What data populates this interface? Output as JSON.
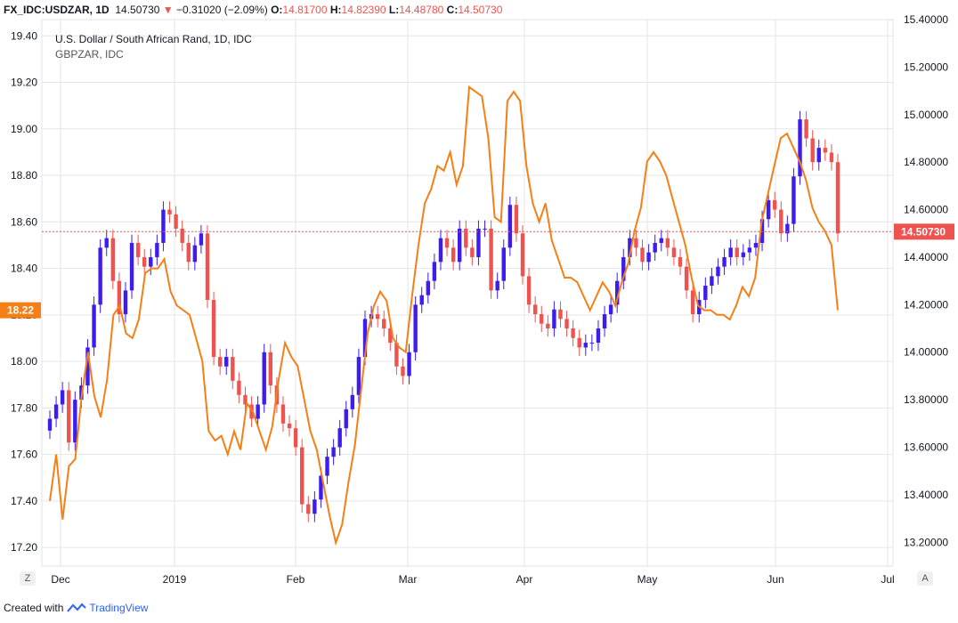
{
  "header": {
    "symbol": "FX_IDC:USDZAR, 1D",
    "last": "14.50730",
    "change_arrow": "▼",
    "change": "−0.31020 (−2.09%)",
    "o_label": "O:",
    "o": "14.81700",
    "h_label": "H:",
    "h": "14.82390",
    "l_label": "L:",
    "l": "14.48780",
    "c_label": "C:",
    "c": "14.50730"
  },
  "legend": {
    "line1": "U.S. Dollar / South African Rand, 1D, IDC",
    "line2": "GBPZAR, IDC"
  },
  "footer": {
    "created_with": "Created with",
    "brand": "TradingView"
  },
  "axis_buttons": {
    "left": "Z",
    "right": "A"
  },
  "colors": {
    "up": "#3d1cf0",
    "down": "#ef5350",
    "gbp_line": "#f57f17",
    "price_line": "#ef5350",
    "grid": "#e6e6e6"
  },
  "chart_data": {
    "type": "line",
    "title": "U.S. Dollar / South African Rand, 1D, IDC",
    "x_ticks": [
      "Dec",
      "2019",
      "Feb",
      "Mar",
      "Apr",
      "May",
      "Jun",
      "Jul"
    ],
    "left_axis": {
      "series": "GBPZAR",
      "ticks": [
        "19.40",
        "19.20",
        "19.00",
        "18.80",
        "18.60",
        "18.40",
        "18.20",
        "18.00",
        "17.80",
        "17.60",
        "17.40",
        "17.20"
      ],
      "range": [
        17.12,
        19.47
      ],
      "last_label": "18.22"
    },
    "right_axis": {
      "series": "USDZAR",
      "ticks": [
        "15.40000",
        "15.20000",
        "15.00000",
        "14.80000",
        "14.60000",
        "14.40000",
        "14.20000",
        "14.00000",
        "13.80000",
        "13.60000",
        "13.40000",
        "13.20000"
      ],
      "range": [
        13.1,
        15.4
      ],
      "last_label": "14.50730"
    },
    "usdzar_candles_close": [
      13.72,
      13.78,
      13.84,
      13.62,
      13.8,
      13.86,
      14.02,
      14.2,
      14.44,
      14.48,
      14.3,
      14.16,
      14.26,
      14.46,
      14.4,
      14.36,
      14.4,
      14.46,
      14.6,
      14.58,
      14.52,
      14.46,
      14.38,
      14.45,
      14.5,
      14.22,
      13.98,
      13.94,
      13.98,
      13.88,
      13.82,
      13.78,
      13.72,
      13.78,
      14.0,
      13.86,
      13.78,
      13.7,
      13.68,
      13.6,
      13.36,
      13.32,
      13.38,
      13.48,
      13.56,
      13.6,
      13.68,
      13.76,
      13.82,
      13.98,
      14.14,
      14.16,
      14.14,
      14.1,
      14.04,
      13.94,
      13.9,
      14.0,
      14.2,
      14.24,
      14.3,
      14.38,
      14.48,
      14.44,
      14.38,
      14.52,
      14.44,
      14.4,
      14.52,
      14.52,
      14.26,
      14.3,
      14.44,
      14.62,
      14.5,
      14.32,
      14.2,
      14.16,
      14.12,
      14.1,
      14.18,
      14.14,
      14.1,
      14.06,
      14.02,
      14.04,
      14.04,
      14.1,
      14.16,
      14.2,
      14.3,
      14.4,
      14.48,
      14.44,
      14.38,
      14.42,
      14.46,
      14.48,
      14.44,
      14.4,
      14.36,
      14.26,
      14.16,
      14.22,
      14.28,
      14.32,
      14.36,
      14.4,
      14.44,
      14.4,
      14.42,
      14.44,
      14.46,
      14.56,
      14.64,
      14.6,
      14.5,
      14.54,
      14.74,
      14.98,
      14.9,
      14.8,
      14.86,
      14.84,
      14.8,
      14.5
    ],
    "gbpzar_close": [
      17.4,
      17.6,
      17.32,
      17.55,
      17.58,
      17.85,
      18.04,
      17.85,
      17.76,
      17.92,
      18.2,
      18.24,
      18.12,
      18.1,
      18.18,
      18.38,
      18.4,
      18.4,
      18.44,
      18.3,
      18.24,
      18.22,
      18.2,
      18.1,
      18.0,
      17.7,
      17.66,
      17.68,
      17.6,
      17.7,
      17.62,
      17.82,
      17.78,
      17.7,
      17.62,
      17.72,
      17.92,
      18.08,
      18.02,
      17.98,
      17.84,
      17.7,
      17.62,
      17.48,
      17.34,
      17.22,
      17.3,
      17.48,
      17.64,
      17.88,
      18.12,
      18.24,
      18.3,
      18.26,
      18.1,
      18.06,
      18.04,
      18.28,
      18.5,
      18.68,
      18.74,
      18.84,
      18.82,
      18.9,
      18.76,
      18.84,
      19.18,
      19.16,
      19.14,
      18.96,
      18.62,
      18.6,
      19.12,
      19.16,
      19.12,
      18.84,
      18.68,
      18.6,
      18.68,
      18.52,
      18.44,
      18.36,
      18.36,
      18.34,
      18.28,
      18.22,
      18.28,
      18.34,
      18.3,
      18.24,
      18.34,
      18.42,
      18.56,
      18.66,
      18.86,
      18.9,
      18.86,
      18.8,
      18.7,
      18.6,
      18.5,
      18.36,
      18.24,
      18.22,
      18.22,
      18.2,
      18.2,
      18.18,
      18.24,
      18.32,
      18.28,
      18.36,
      18.6,
      18.72,
      18.84,
      18.96,
      18.98,
      18.92,
      18.86,
      18.78,
      18.66,
      18.6,
      18.56,
      18.5,
      18.22
    ]
  }
}
